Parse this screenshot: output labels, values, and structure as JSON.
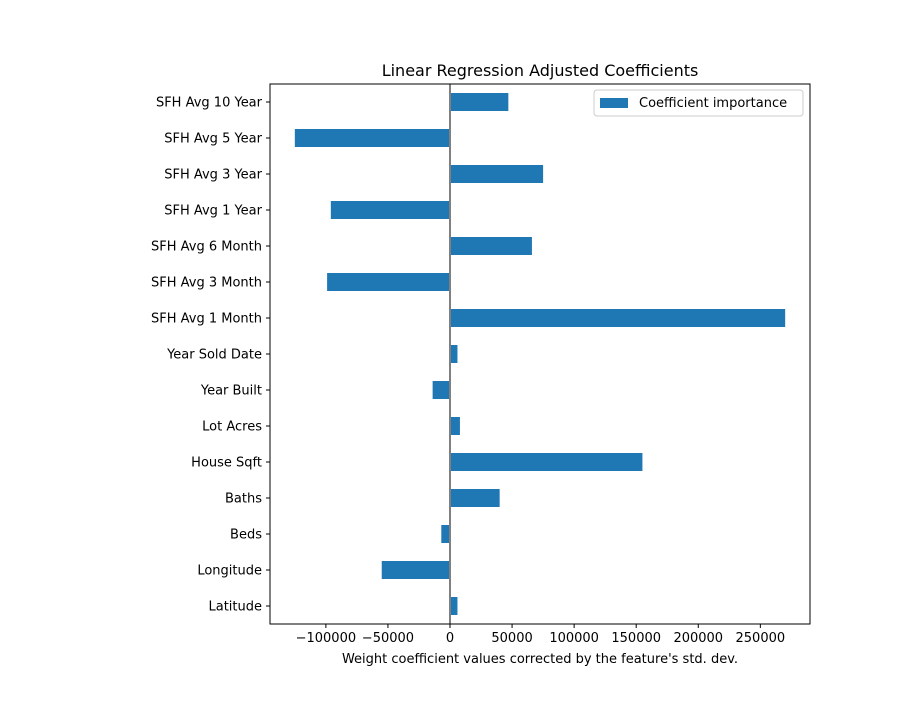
{
  "chart_data": {
    "type": "bar",
    "orientation": "horizontal",
    "title": "Linear Regression Adjusted Coefficients",
    "xlabel": "Weight coefficient values corrected by the feature's std. dev.",
    "ylabel": "",
    "xlim": [
      -145000,
      290000
    ],
    "x_ticks": [
      -100000,
      -50000,
      0,
      50000,
      100000,
      150000,
      200000,
      250000
    ],
    "x_tick_labels": [
      "−100000",
      "−50000",
      "0",
      "50000",
      "100000",
      "150000",
      "200000",
      "250000"
    ],
    "categories": [
      "Latitude",
      "Longitude",
      "Beds",
      "Baths",
      "House Sqft",
      "Lot Acres",
      "Year Built",
      "Year Sold Date",
      "SFH Avg 1 Month",
      "SFH Avg 3 Month",
      "SFH Avg 6 Month",
      "SFH Avg 1 Year",
      "SFH Avg 3 Year",
      "SFH Avg 5 Year",
      "SFH Avg 10 Year"
    ],
    "series": [
      {
        "name": "Coefficient importance",
        "color": "#1f77b4",
        "values": [
          6000,
          -55000,
          -7000,
          40000,
          155000,
          8000,
          -14000,
          6000,
          270000,
          -99000,
          66000,
          -96000,
          75000,
          -125000,
          47000
        ]
      }
    ],
    "zero_line_color": "#808080",
    "grid": false,
    "legend_position": "top-right"
  }
}
